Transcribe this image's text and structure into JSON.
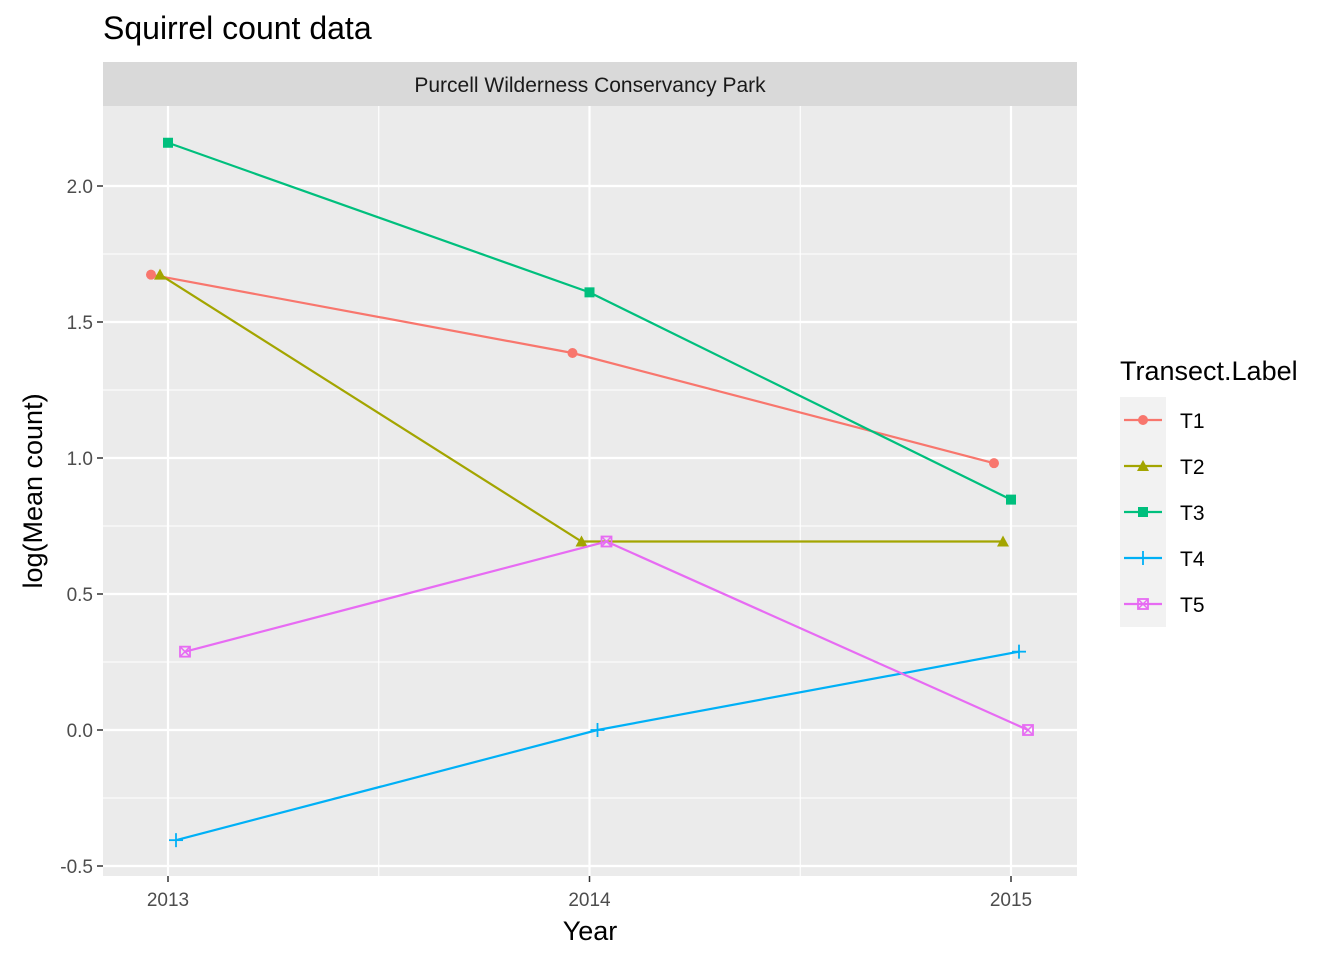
{
  "chart_data": {
    "type": "line",
    "title": "Squirrel count data",
    "facet": "Purcell Wilderness Conservancy Park",
    "xlabel": "Year",
    "ylabel": "log(Mean count)",
    "x": [
      2013,
      2014,
      2015
    ],
    "x_ticks": [
      "2013",
      "2014",
      "2015"
    ],
    "y_ticks": [
      "-0.5",
      "0.0",
      "0.5",
      "1.0",
      "1.5",
      "2.0"
    ],
    "ylim": [
      -0.53,
      2.27
    ],
    "grid": true,
    "legend": {
      "title": "Transect.Label",
      "position": "right"
    },
    "series": [
      {
        "name": "T1",
        "color": "#F8766D",
        "shape": "circle",
        "values": [
          1.674,
          1.386,
          0.981
        ]
      },
      {
        "name": "T2",
        "color": "#A3A500",
        "shape": "triangle",
        "values": [
          1.674,
          0.693,
          0.693
        ]
      },
      {
        "name": "T3",
        "color": "#00BF7D",
        "shape": "square",
        "values": [
          2.159,
          1.609,
          0.847
        ]
      },
      {
        "name": "T4",
        "color": "#00B0F6",
        "shape": "plus",
        "values": [
          -0.405,
          0.0,
          0.288
        ]
      },
      {
        "name": "T5",
        "color": "#E76BF3",
        "shape": "square-cross",
        "values": [
          0.288,
          0.693,
          0.0
        ]
      }
    ]
  }
}
